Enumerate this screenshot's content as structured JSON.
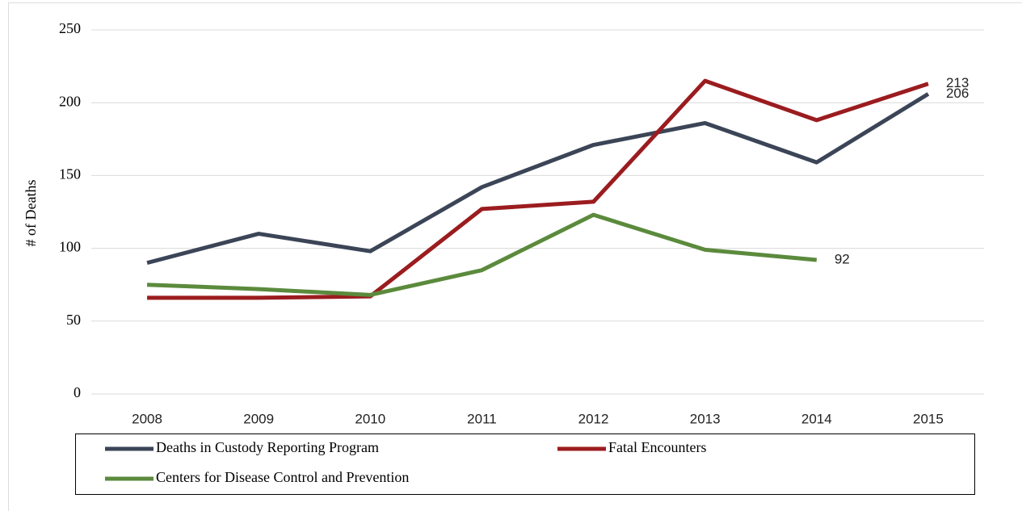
{
  "chart_data": {
    "type": "line",
    "y_label": "# of Deaths",
    "categories": [
      "2008",
      "2009",
      "2010",
      "2011",
      "2012",
      "2013",
      "2014",
      "2015"
    ],
    "series": [
      {
        "name": "Deaths in Custody Reporting Program",
        "color": "#3b4557",
        "values": [
          90,
          110,
          98,
          142,
          171,
          186,
          159,
          206
        ],
        "label_last": true
      },
      {
        "name": "Fatal Encounters",
        "color": "#9b1c1f",
        "values": [
          66,
          66,
          67,
          127,
          132,
          215,
          188,
          213
        ],
        "label_last": true
      },
      {
        "name": "Centers for Disease Control and Prevention",
        "color": "#5b8a3c",
        "values": [
          75,
          72,
          68,
          85,
          123,
          99,
          92,
          null
        ],
        "label_last": true
      }
    ],
    "ylim": [
      0,
      250
    ],
    "yticks": [
      0,
      50,
      100,
      150,
      200,
      250
    ],
    "grid": true,
    "legend": "bottom"
  }
}
